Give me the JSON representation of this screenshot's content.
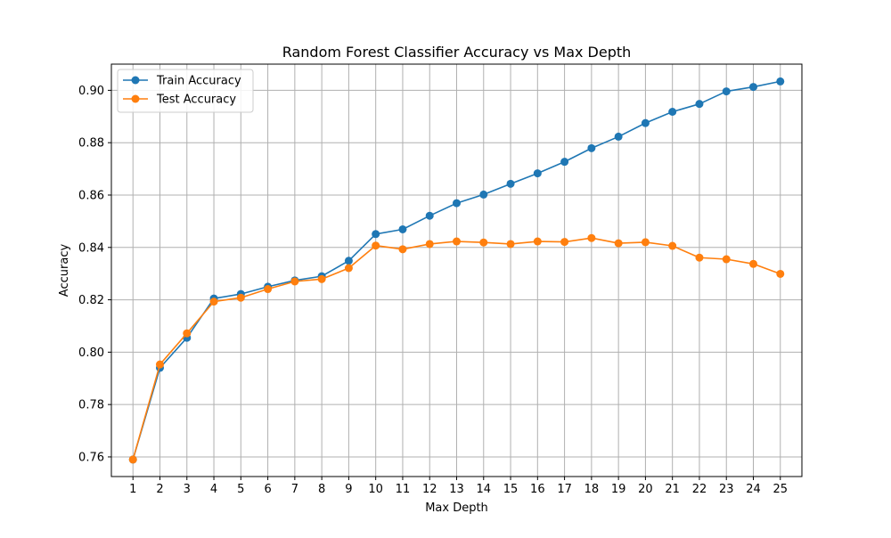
{
  "chart_data": {
    "type": "line",
    "title": "Random Forest Classifier Accuracy vs Max Depth",
    "xlabel": "Max Depth",
    "ylabel": "Accuracy",
    "x": [
      1,
      2,
      3,
      4,
      5,
      6,
      7,
      8,
      9,
      10,
      11,
      12,
      13,
      14,
      15,
      16,
      17,
      18,
      19,
      20,
      21,
      22,
      23,
      24,
      25
    ],
    "xlim": [
      0.2,
      25.8
    ],
    "ylim": [
      0.7525,
      0.91
    ],
    "xticks": [
      1,
      2,
      3,
      4,
      5,
      6,
      7,
      8,
      9,
      10,
      11,
      12,
      13,
      14,
      15,
      16,
      17,
      18,
      19,
      20,
      21,
      22,
      23,
      24,
      25
    ],
    "yticks": [
      0.76,
      0.78,
      0.8,
      0.82,
      0.84,
      0.86,
      0.88,
      0.9
    ],
    "ytick_labels": [
      "0.76",
      "0.78",
      "0.80",
      "0.82",
      "0.84",
      "0.86",
      "0.88",
      "0.90"
    ],
    "grid": true,
    "legend": "top-left",
    "series": [
      {
        "name": "Train Accuracy",
        "color": "#1f77b4",
        "values": [
          0.759,
          0.794,
          0.8055,
          0.8205,
          0.8222,
          0.825,
          0.8274,
          0.829,
          0.8349,
          0.8451,
          0.8469,
          0.8521,
          0.8569,
          0.8602,
          0.8643,
          0.8683,
          0.8727,
          0.8779,
          0.8823,
          0.8875,
          0.8918,
          0.8948,
          0.8996,
          0.9013,
          0.9034
        ]
      },
      {
        "name": "Test Accuracy",
        "color": "#ff7f0e",
        "values": [
          0.759,
          0.7953,
          0.8072,
          0.8193,
          0.8208,
          0.8241,
          0.827,
          0.8279,
          0.8321,
          0.8407,
          0.8393,
          0.8413,
          0.8423,
          0.8419,
          0.8413,
          0.8423,
          0.8421,
          0.8436,
          0.8416,
          0.842,
          0.8406,
          0.8361,
          0.8355,
          0.8337,
          0.8299
        ]
      }
    ]
  }
}
